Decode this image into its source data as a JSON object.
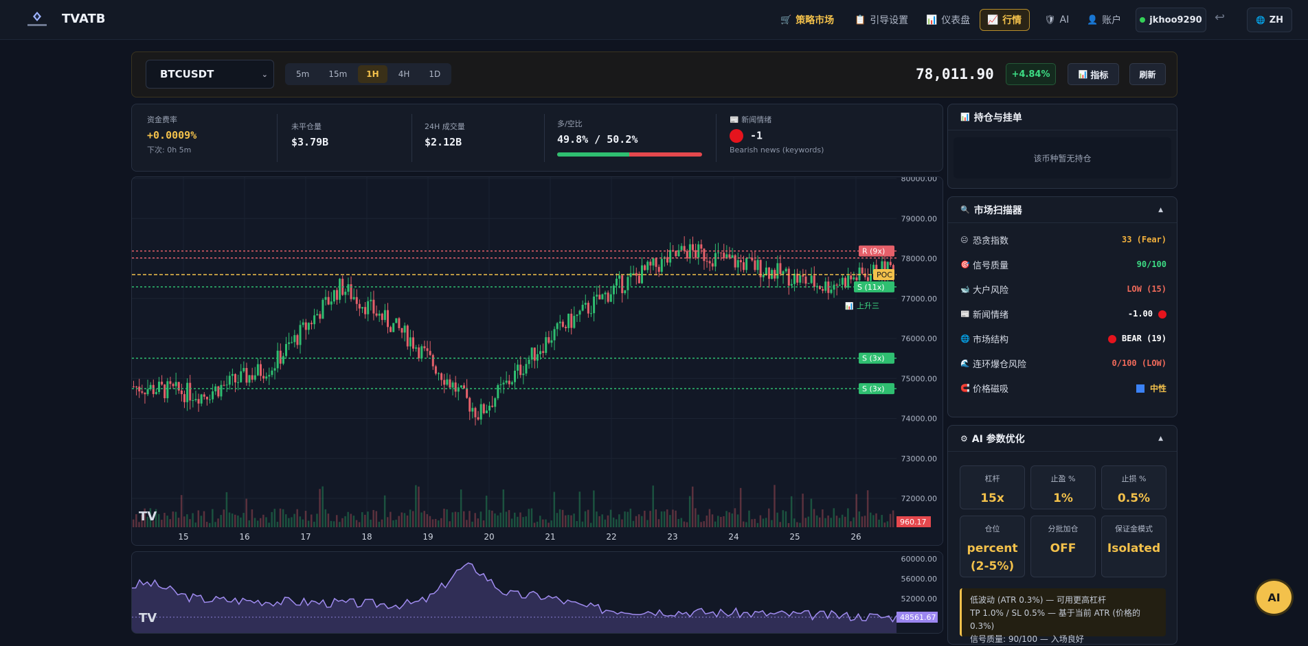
{
  "header": {
    "brand": "TVATB",
    "nav": [
      {
        "label": "策略市场",
        "icon": "cart-icon"
      },
      {
        "label": "引导设置",
        "icon": "clipboard-icon"
      },
      {
        "label": "仪表盘",
        "icon": "bar-chart-icon"
      },
      {
        "label": "行情",
        "icon": "trend-chart-icon"
      },
      {
        "label": "AI",
        "icon": "shield-icon"
      },
      {
        "label": "账户",
        "icon": "user-icon"
      }
    ],
    "user": "jkhoo9290",
    "lang": "ZH"
  },
  "toolbar": {
    "symbol": "BTCUSDT",
    "timeframes": [
      "5m",
      "15m",
      "1H",
      "4H",
      "1D"
    ],
    "active_timeframe": "1H",
    "price": "78,011.90",
    "change": "+4.84%",
    "indicators_label": "指标",
    "refresh_label": "刷新"
  },
  "stats": {
    "funding": {
      "label": "资金费率",
      "value": "+0.0009%",
      "sub": "下次: 0h 5m"
    },
    "oi": {
      "label": "未平仓量",
      "value": "$3.79B"
    },
    "vol": {
      "label": "24H 成交量",
      "value": "$2.12B"
    },
    "ls": {
      "label": "多/空比",
      "value": "49.8% / 50.2%",
      "long_pct": 49.8
    },
    "news": {
      "label": "新闻情绪",
      "value": "-1",
      "sub": "Bearish news (keywords)"
    }
  },
  "chart": {
    "y_ticks": [
      "80000.00",
      "79000.00",
      "78000.00",
      "77000.00",
      "76000.00",
      "75000.00",
      "74000.00",
      "73000.00",
      "72000.00"
    ],
    "x_ticks": [
      "15",
      "16",
      "17",
      "18",
      "19",
      "20",
      "21",
      "22",
      "23",
      "24",
      "25",
      "26"
    ],
    "levels": [
      {
        "label": "R (9x)",
        "value": "78185.78",
        "kind": "resistance",
        "price": 78185.78
      },
      {
        "label": "",
        "value": "78011.90",
        "kind": "last",
        "price": 78011.9
      },
      {
        "label": "POC",
        "value": "77596.37",
        "kind": "poc",
        "price": 77596.37
      },
      {
        "label": "S (11x)",
        "value": "77288.74",
        "kind": "support",
        "price": 77288.74
      },
      {
        "label": "S (3x)",
        "value": "75507.37",
        "kind": "support",
        "price": 75507.37
      },
      {
        "label": "S (3x)",
        "value": "74744.97",
        "kind": "support",
        "price": 74744.97
      }
    ],
    "pattern_label": "上升三",
    "volume_tag": "960.17"
  },
  "chart_data": {
    "type": "line",
    "title": "BTCUSDT 1H",
    "x": [
      "15",
      "16",
      "17",
      "18",
      "19",
      "20",
      "21",
      "22",
      "23",
      "24",
      "25",
      "26"
    ],
    "series": [
      {
        "name": "BTCUSDT",
        "values": [
          74800,
          74600,
          75300,
          77300,
          76000,
          74100,
          76000,
          77300,
          78200,
          77800,
          77300,
          77800
        ]
      }
    ],
    "ylim": [
      72000,
      80000
    ],
    "sub_y_ticks": [
      "60000.00",
      "56000.00",
      "52000.00"
    ],
    "sub_tag": "48561.67"
  },
  "positions": {
    "title": "持仓与挂单",
    "empty": "该币种暂无持仓"
  },
  "scanner": {
    "title": "市场扫描器",
    "rows": [
      {
        "label": "恐贪指数",
        "value": "33 (Fear)",
        "color": "#f3b13d",
        "icon": "face-icon"
      },
      {
        "label": "信号质量",
        "value": "90/100",
        "color": "#3ddc84",
        "icon": "target-icon"
      },
      {
        "label": "大户风险",
        "value": "LOW (15)",
        "color": "#f06a5a",
        "icon": "whale-icon"
      },
      {
        "label": "新闻情绪",
        "value": "-1.00",
        "color": "#ffffff",
        "icon": "news-icon"
      },
      {
        "label": "市场结构",
        "value": "BEAR (19)",
        "color": "#ffffff",
        "icon": "globe-icon"
      },
      {
        "label": "连环爆仓风险",
        "value": "0/100 (LOW)",
        "color": "#f06a5a",
        "icon": "wave-icon"
      },
      {
        "label": "价格磁吸",
        "value": "中性",
        "color": "#f3c14b",
        "icon": "magnet-icon"
      }
    ]
  },
  "ai": {
    "title": "AI 参数优化",
    "cards": [
      {
        "label": "杠杆",
        "value": "15x"
      },
      {
        "label": "止盈 %",
        "value": "1%"
      },
      {
        "label": "止损 %",
        "value": "0.5%"
      },
      {
        "label": "仓位",
        "value": "percent (2-5%)"
      },
      {
        "label": "分批加仓",
        "value": "OFF"
      },
      {
        "label": "保证金模式",
        "value": "Isolated"
      }
    ],
    "notes": [
      "低波动 (ATR 0.3%) — 可用更高杠杆",
      "TP 1.0% / SL 0.5% — 基于当前 ATR (价格的 0.3%)",
      "信号质量: 90/100 — 入场良好"
    ],
    "fab": "AI"
  }
}
